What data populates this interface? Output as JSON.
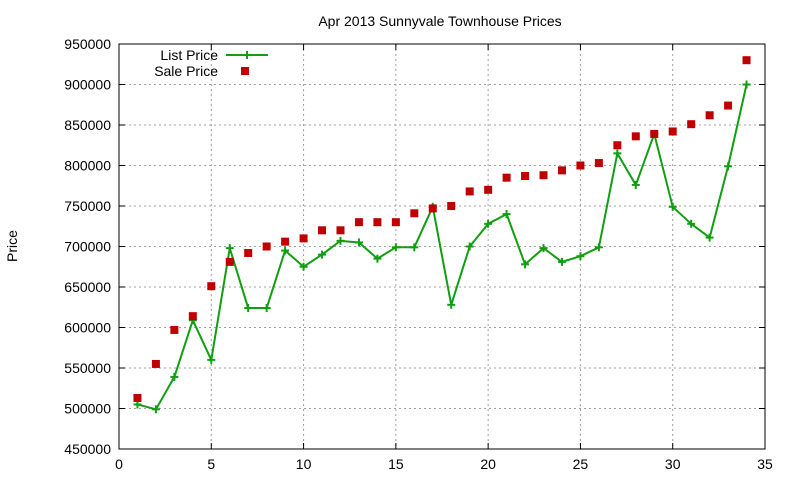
{
  "chart_data": {
    "type": "line",
    "title": "Apr 2013 Sunnyvale Townhouse Prices",
    "xlabel": "",
    "ylabel": "Price",
    "xlim": [
      0,
      35
    ],
    "ylim": [
      450000,
      950000
    ],
    "xticks": [
      0,
      5,
      10,
      15,
      20,
      25,
      30,
      35
    ],
    "yticks": [
      450000,
      500000,
      550000,
      600000,
      650000,
      700000,
      750000,
      800000,
      850000,
      900000,
      950000
    ],
    "grid": true,
    "legend_position": "top-left",
    "colors": {
      "list": "#119e11",
      "sale": "#c00000"
    },
    "x": [
      1,
      2,
      3,
      4,
      5,
      6,
      7,
      8,
      9,
      10,
      11,
      12,
      13,
      14,
      15,
      16,
      17,
      18,
      19,
      20,
      21,
      22,
      23,
      24,
      25,
      26,
      27,
      28,
      29,
      30,
      31,
      32,
      33,
      34
    ],
    "series": [
      {
        "name": "List Price",
        "style": "linespoints",
        "values": [
          505000,
          499000,
          539000,
          609000,
          560000,
          698000,
          624000,
          624000,
          695000,
          675000,
          690000,
          707000,
          705000,
          685000,
          699000,
          699000,
          749000,
          628000,
          700000,
          728000,
          740000,
          678000,
          698000,
          681000,
          688000,
          699000,
          815000,
          776000,
          839000,
          749000,
          728000,
          711000,
          799000,
          900000
        ]
      },
      {
        "name": "Sale Price",
        "style": "points",
        "values": [
          513000,
          555000,
          597000,
          614000,
          651000,
          681000,
          692000,
          700000,
          706000,
          710000,
          720000,
          720000,
          730000,
          730000,
          730000,
          741000,
          747000,
          750000,
          768000,
          770000,
          785000,
          787000,
          788000,
          794000,
          800000,
          803000,
          825000,
          836000,
          839000,
          842000,
          851000,
          862000,
          874000,
          930000
        ]
      }
    ]
  }
}
